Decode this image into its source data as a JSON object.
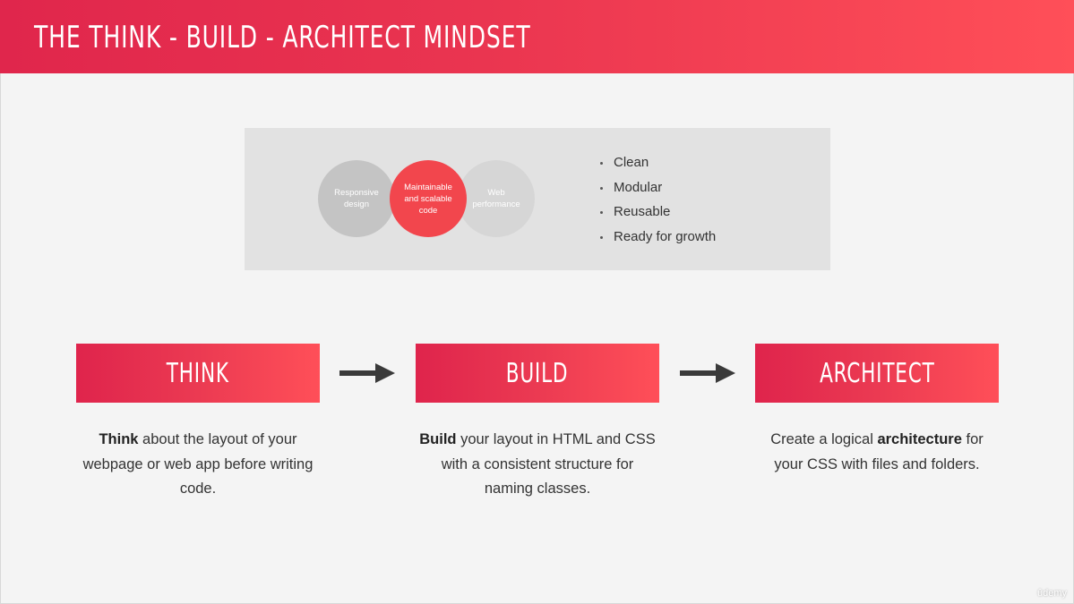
{
  "header": {
    "title": "THE THINK - BUILD - ARCHITECT MINDSET"
  },
  "concept": {
    "circles": {
      "left": "Responsive design",
      "middle": "Maintainable and scalable code",
      "right": "Web performance"
    },
    "bullets": [
      "Clean",
      "Modular",
      "Reusable",
      "Ready for growth"
    ]
  },
  "steps": [
    {
      "label": "THINK",
      "desc_bold": "Think",
      "desc_rest": " about the layout of your webpage or web app before writing code.",
      "desc_pre": ""
    },
    {
      "label": "BUILD",
      "desc_bold": "Build",
      "desc_rest": " your layout in HTML and CSS with a consistent structure for naming classes.",
      "desc_pre": ""
    },
    {
      "label": "ARCHITECT",
      "desc_pre": "Create a logical ",
      "desc_bold": "architecture",
      "desc_rest": " for your CSS with files and folders."
    }
  ],
  "watermark": "ûdemy",
  "colors": {
    "accent": "#f2464d",
    "header_start": "#e0264c",
    "header_end": "#ff4f58",
    "circle_grey": "#c4c4c4",
    "background": "#f4f4f4",
    "text": "#333333"
  }
}
